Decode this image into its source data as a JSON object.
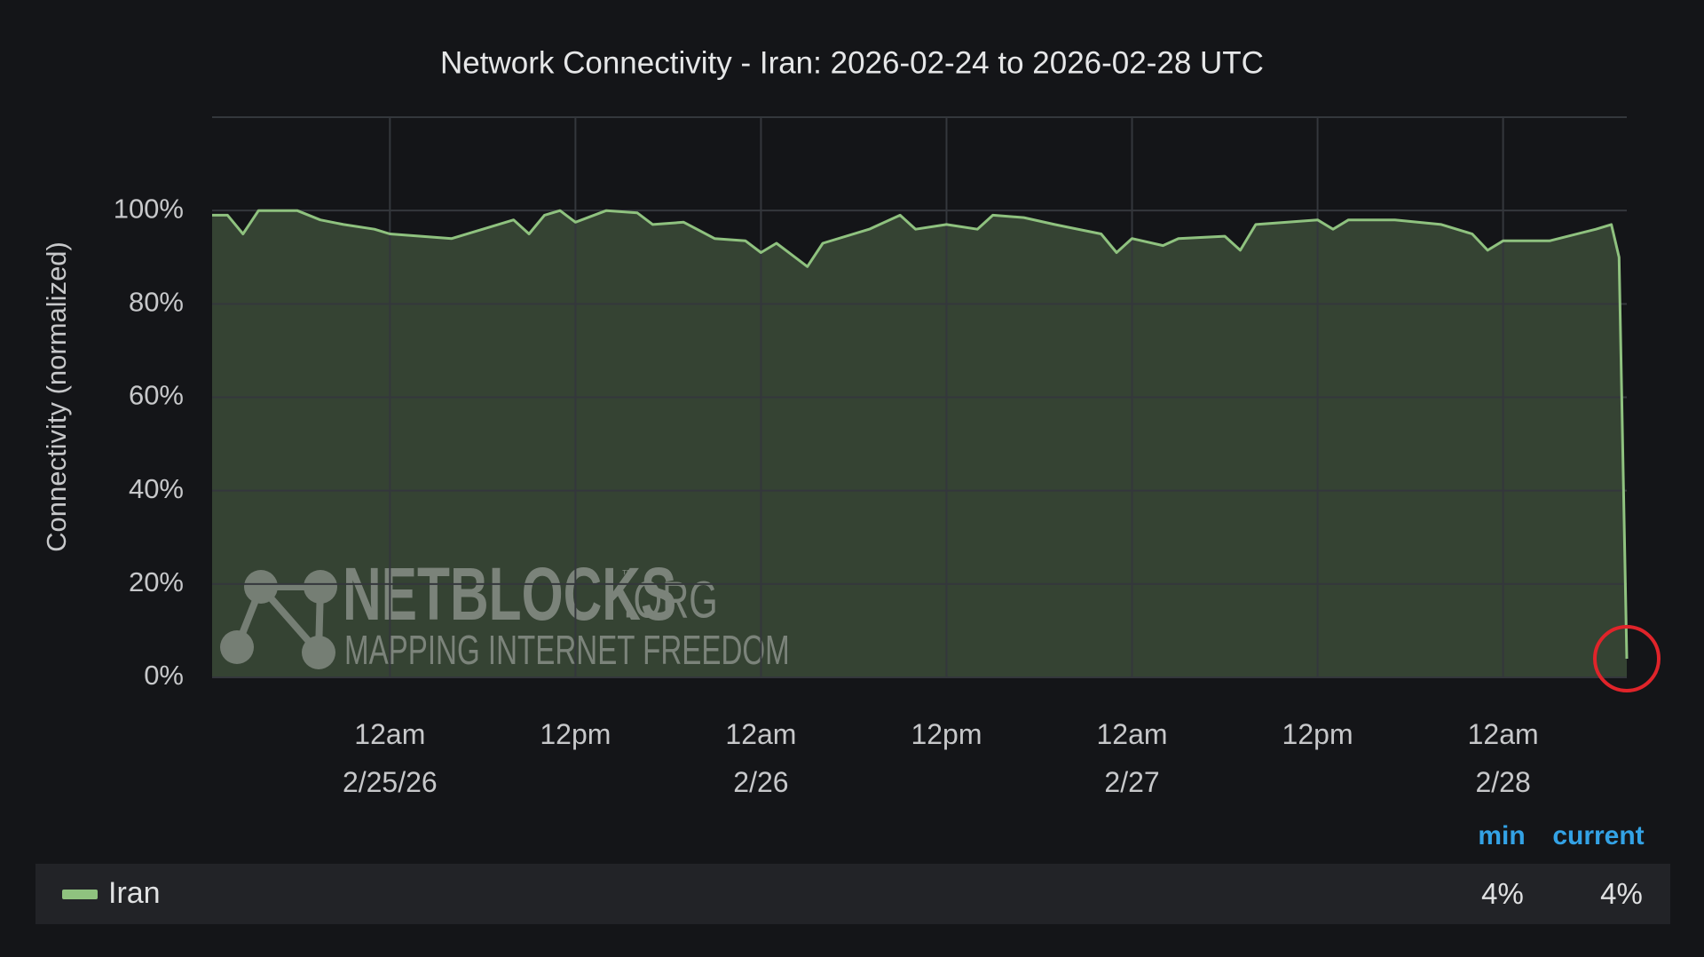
{
  "chart_data": {
    "type": "area",
    "title": "Network Connectivity - Iran: 2026-02-24 to 2026-02-28 UTC",
    "y_label": "Connectivity (normalized)",
    "x": [
      "2026-02-24T12:30",
      "2026-02-24T13:30",
      "2026-02-24T14:30",
      "2026-02-24T15:30",
      "2026-02-24T18:00",
      "2026-02-24T19:30",
      "2026-02-24T21:00",
      "2026-02-24T23:00",
      "2026-02-25T00:00",
      "2026-02-25T02:00",
      "2026-02-25T04:00",
      "2026-02-25T06:00",
      "2026-02-25T08:00",
      "2026-02-25T09:00",
      "2026-02-25T10:00",
      "2026-02-25T11:00",
      "2026-02-25T12:00",
      "2026-02-25T14:00",
      "2026-02-25T16:00",
      "2026-02-25T17:00",
      "2026-02-25T19:00",
      "2026-02-25T21:00",
      "2026-02-25T23:00",
      "2026-02-26T00:00",
      "2026-02-26T01:00",
      "2026-02-26T03:00",
      "2026-02-26T04:00",
      "2026-02-26T07:00",
      "2026-02-26T09:00",
      "2026-02-26T10:00",
      "2026-02-26T12:00",
      "2026-02-26T14:00",
      "2026-02-26T15:00",
      "2026-02-26T17:00",
      "2026-02-26T19:00",
      "2026-02-26T22:00",
      "2026-02-26T23:00",
      "2026-02-27T00:00",
      "2026-02-27T02:00",
      "2026-02-27T03:00",
      "2026-02-27T06:00",
      "2026-02-27T07:00",
      "2026-02-27T08:00",
      "2026-02-27T12:00",
      "2026-02-27T13:00",
      "2026-02-27T14:00",
      "2026-02-27T17:00",
      "2026-02-27T20:00",
      "2026-02-27T22:00",
      "2026-02-27T23:00",
      "2026-02-28T00:00",
      "2026-02-28T03:00",
      "2026-02-28T06:00",
      "2026-02-28T07:00",
      "2026-02-28T07:30",
      "2026-02-28T08:00"
    ],
    "series": [
      {
        "name": "Iran",
        "color": "#8fc27f",
        "values": [
          99,
          99,
          95,
          100,
          100,
          98,
          97,
          96,
          95,
          94.5,
          94,
          96,
          98,
          95,
          99,
          100,
          97.5,
          100,
          99.5,
          97,
          97.5,
          94,
          93.5,
          91,
          93,
          88,
          93,
          96,
          99,
          96,
          97,
          96,
          99,
          98.5,
          97,
          95,
          91,
          94,
          92.5,
          94,
          94.5,
          91.5,
          97,
          98,
          96,
          98,
          98,
          97,
          95,
          91.5,
          93.5,
          93.5,
          96,
          97,
          90,
          4
        ],
        "stats": [
          {
            "name": "min",
            "value": 4,
            "label": "4%"
          },
          {
            "name": "current",
            "value": 4,
            "label": "4%"
          }
        ]
      }
    ],
    "xlim": [
      "2026-02-24T12:30",
      "2026-02-28T08:00"
    ],
    "xticks": [
      {
        "value": "2026-02-25T00:00",
        "label": "12am\n2/25/26"
      },
      {
        "value": "2026-02-25T12:00",
        "label": "12pm"
      },
      {
        "value": "2026-02-26T00:00",
        "label": "12am\n2/26"
      },
      {
        "value": "2026-02-26T12:00",
        "label": "12pm"
      },
      {
        "value": "2026-02-27T00:00",
        "label": "12am\n2/27"
      },
      {
        "value": "2026-02-27T12:00",
        "label": "12pm"
      },
      {
        "value": "2026-02-28T00:00",
        "label": "12am\n2/28"
      }
    ],
    "ylim": [
      0,
      120
    ],
    "yticks": [
      {
        "value": 0,
        "label": "0%"
      },
      {
        "value": 20,
        "label": "20%"
      },
      {
        "value": 40,
        "label": "40%"
      },
      {
        "value": 60,
        "label": "60%"
      },
      {
        "value": 80,
        "label": "80%"
      },
      {
        "value": 100,
        "label": "100%"
      }
    ],
    "grid": true,
    "watermark": {
      "name": "NETBLOCKS",
      "mark": "™",
      "suffix": ".ORG",
      "tagline": "MAPPING INTERNET FREEDOM"
    }
  }
}
